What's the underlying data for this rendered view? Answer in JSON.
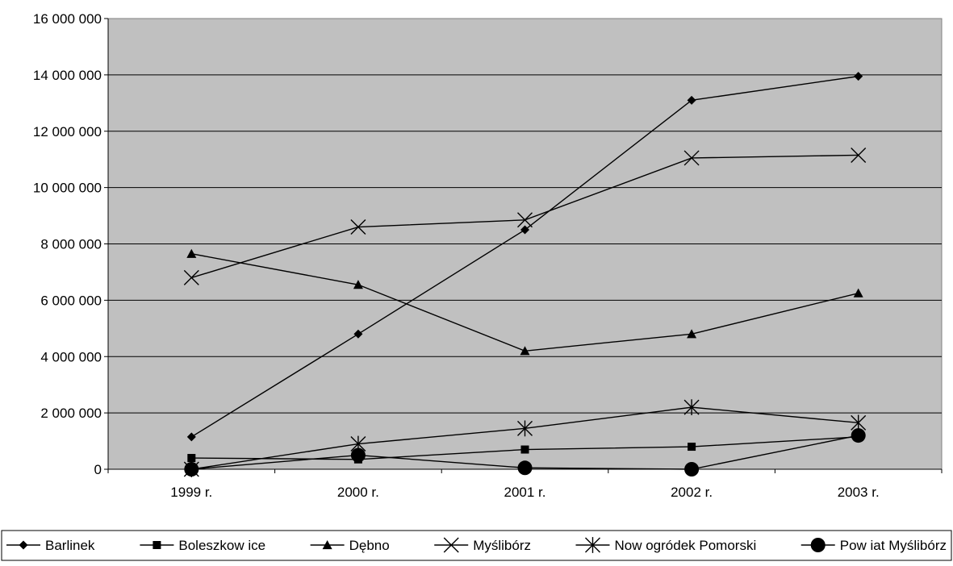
{
  "chart_data": {
    "type": "line",
    "title": "",
    "xlabel": "",
    "ylabel": "",
    "categories": [
      "1999 r.",
      "2000 r.",
      "2001 r.",
      "2002 r.",
      "2003 r."
    ],
    "ylim": [
      0,
      16000000
    ],
    "yticks": [
      0,
      2000000,
      4000000,
      6000000,
      8000000,
      10000000,
      12000000,
      14000000,
      16000000
    ],
    "ytick_labels": [
      "0",
      "2 000 000",
      "4 000 000",
      "6 000 000",
      "8 000 000",
      "10 000 000",
      "12 000 000",
      "14 000 000",
      "16 000 000"
    ],
    "grid": true,
    "plot_background": "#c0c0c0",
    "line_color": "#000000",
    "legend_position": "bottom",
    "series": [
      {
        "name": "Barlinek",
        "marker": "diamond",
        "values": [
          1150000,
          4800000,
          8500000,
          13100000,
          13950000
        ]
      },
      {
        "name": "Boleszkow ice",
        "marker": "square",
        "values": [
          400000,
          350000,
          700000,
          800000,
          1150000
        ]
      },
      {
        "name": "Dębno",
        "marker": "triangle",
        "values": [
          7650000,
          6550000,
          4200000,
          4800000,
          6250000
        ]
      },
      {
        "name": "Myślibórz",
        "marker": "x",
        "values": [
          6800000,
          8600000,
          8850000,
          11050000,
          11150000
        ]
      },
      {
        "name": "Now ogródek Pomorski",
        "marker": "star",
        "values": [
          0,
          900000,
          1450000,
          2200000,
          1650000
        ]
      },
      {
        "name": "Pow iat Myślibórz",
        "marker": "circle",
        "values": [
          0,
          500000,
          50000,
          0,
          1200000
        ]
      }
    ]
  }
}
